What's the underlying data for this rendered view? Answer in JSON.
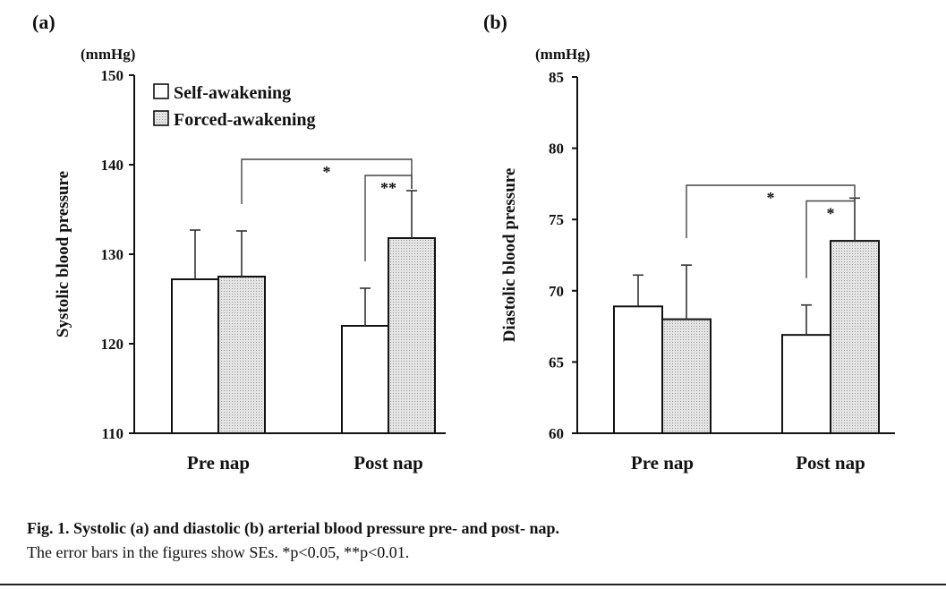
{
  "chart_data": [
    {
      "type": "bar",
      "panel_label": "(a)",
      "unit": "(mmHg)",
      "ylabel": "Systolic blood pressure",
      "categories": [
        "Pre nap",
        "Post nap"
      ],
      "ylim": [
        110,
        150
      ],
      "yticks": [
        110,
        120,
        130,
        140,
        150
      ],
      "series": [
        {
          "name": "Self-awakening",
          "values": [
            127.2,
            122.0
          ],
          "errors": [
            5.5,
            4.2
          ]
        },
        {
          "name": "Forced-awakening",
          "values": [
            127.5,
            131.8
          ],
          "errors": [
            5.1,
            5.3
          ]
        }
      ],
      "legend": "top-left",
      "significance": [
        {
          "label": "*",
          "from": "Pre nap / Forced-awakening",
          "to": "Post nap / Forced-awakening",
          "level": 140.6
        },
        {
          "label": "**",
          "from": "Post nap / Self-awakening",
          "to": "Post nap / Forced-awakening",
          "level": 138.8
        }
      ]
    },
    {
      "type": "bar",
      "panel_label": "(b)",
      "unit": "(mmHg)",
      "ylabel": "Diastolic blood pressure",
      "categories": [
        "Pre nap",
        "Post nap"
      ],
      "ylim": [
        60,
        85
      ],
      "yticks": [
        60,
        65,
        70,
        75,
        80,
        85
      ],
      "series": [
        {
          "name": "Self-awakening",
          "values": [
            68.9,
            66.9
          ],
          "errors": [
            2.2,
            2.1
          ]
        },
        {
          "name": "Forced-awakening",
          "values": [
            68.0,
            73.5
          ],
          "errors": [
            3.8,
            3.0
          ]
        }
      ],
      "significance": [
        {
          "label": "*",
          "from": "Pre nap / Forced-awakening",
          "to": "Post nap / Forced-awakening",
          "level": 77.4
        },
        {
          "label": "*",
          "from": "Post nap / Self-awakening",
          "to": "Post nap / Forced-awakening",
          "level": 76.3
        }
      ]
    }
  ],
  "caption": {
    "line1": "Fig. 1.   Systolic (a) and diastolic (b) arterial blood pressure pre- and post- nap.",
    "line2": "The error bars in the figures show SEs.  *p<0.05, **p<0.01."
  },
  "colors": {
    "self": "#ffffff",
    "forced": "#dcdcdc",
    "axis": "#111111"
  }
}
